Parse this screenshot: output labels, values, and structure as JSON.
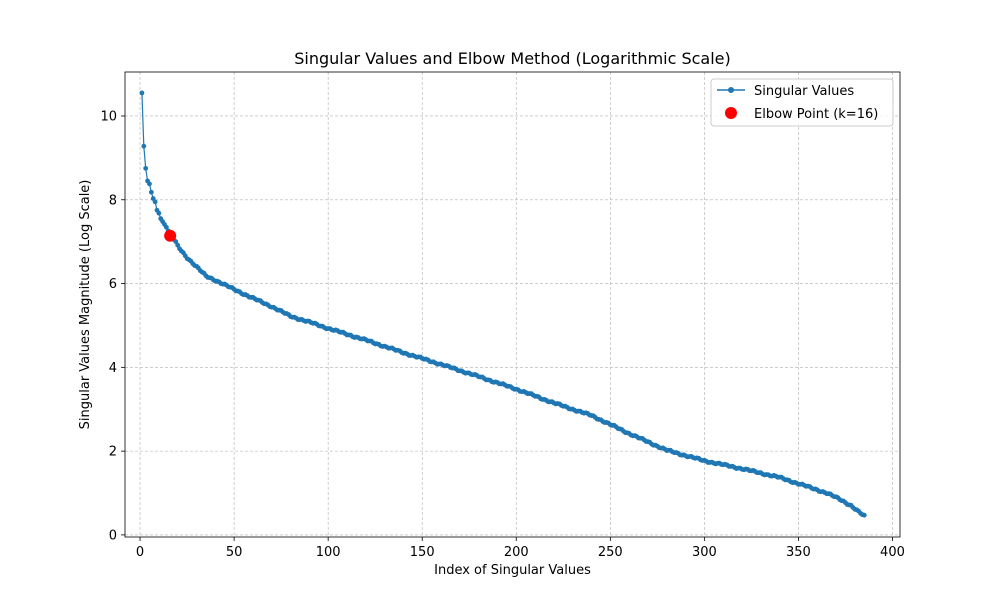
{
  "chart_data": {
    "type": "line",
    "title": "Singular Values and Elbow Method (Logarithmic Scale)",
    "xlabel": "Index of Singular Values",
    "ylabel": "Singular Values Magnitude (Log Scale)",
    "xlim": [
      -8,
      404
    ],
    "ylim": [
      -0.05,
      11.05
    ],
    "x_ticks": [
      0,
      50,
      100,
      150,
      200,
      250,
      300,
      350,
      400
    ],
    "y_ticks": [
      0,
      2,
      4,
      6,
      8,
      10
    ],
    "grid": true,
    "legend_position": "top-right",
    "series": [
      {
        "name": "Singular Values",
        "style": "line-with-markers",
        "color": "#1f77b4",
        "anchors_x": [
          1,
          2,
          3,
          4,
          5,
          6,
          7,
          8,
          9,
          10,
          11,
          12,
          13,
          14,
          15,
          16,
          17,
          18,
          19,
          20,
          22,
          25,
          30,
          35,
          40,
          50,
          60,
          70,
          80,
          90,
          100,
          120,
          140,
          160,
          180,
          200,
          220,
          240,
          260,
          280,
          300,
          320,
          340,
          355,
          365,
          372,
          378,
          382,
          385
        ],
        "anchors_y": [
          10.55,
          9.28,
          8.75,
          8.45,
          8.38,
          8.18,
          8.03,
          7.95,
          7.75,
          7.68,
          7.55,
          7.48,
          7.42,
          7.36,
          7.25,
          7.14,
          7.1,
          7.05,
          6.98,
          6.9,
          6.78,
          6.62,
          6.4,
          6.18,
          6.08,
          5.86,
          5.65,
          5.45,
          5.22,
          5.08,
          4.93,
          4.65,
          4.35,
          4.07,
          3.78,
          3.48,
          3.15,
          2.85,
          2.42,
          2.02,
          1.77,
          1.58,
          1.37,
          1.15,
          1.0,
          0.85,
          0.7,
          0.55,
          0.45
        ],
        "count": 385
      },
      {
        "name": "Elbow Point (k=16)",
        "style": "marker",
        "color": "#ff0000",
        "x": [
          16
        ],
        "y": [
          7.14
        ]
      }
    ]
  }
}
